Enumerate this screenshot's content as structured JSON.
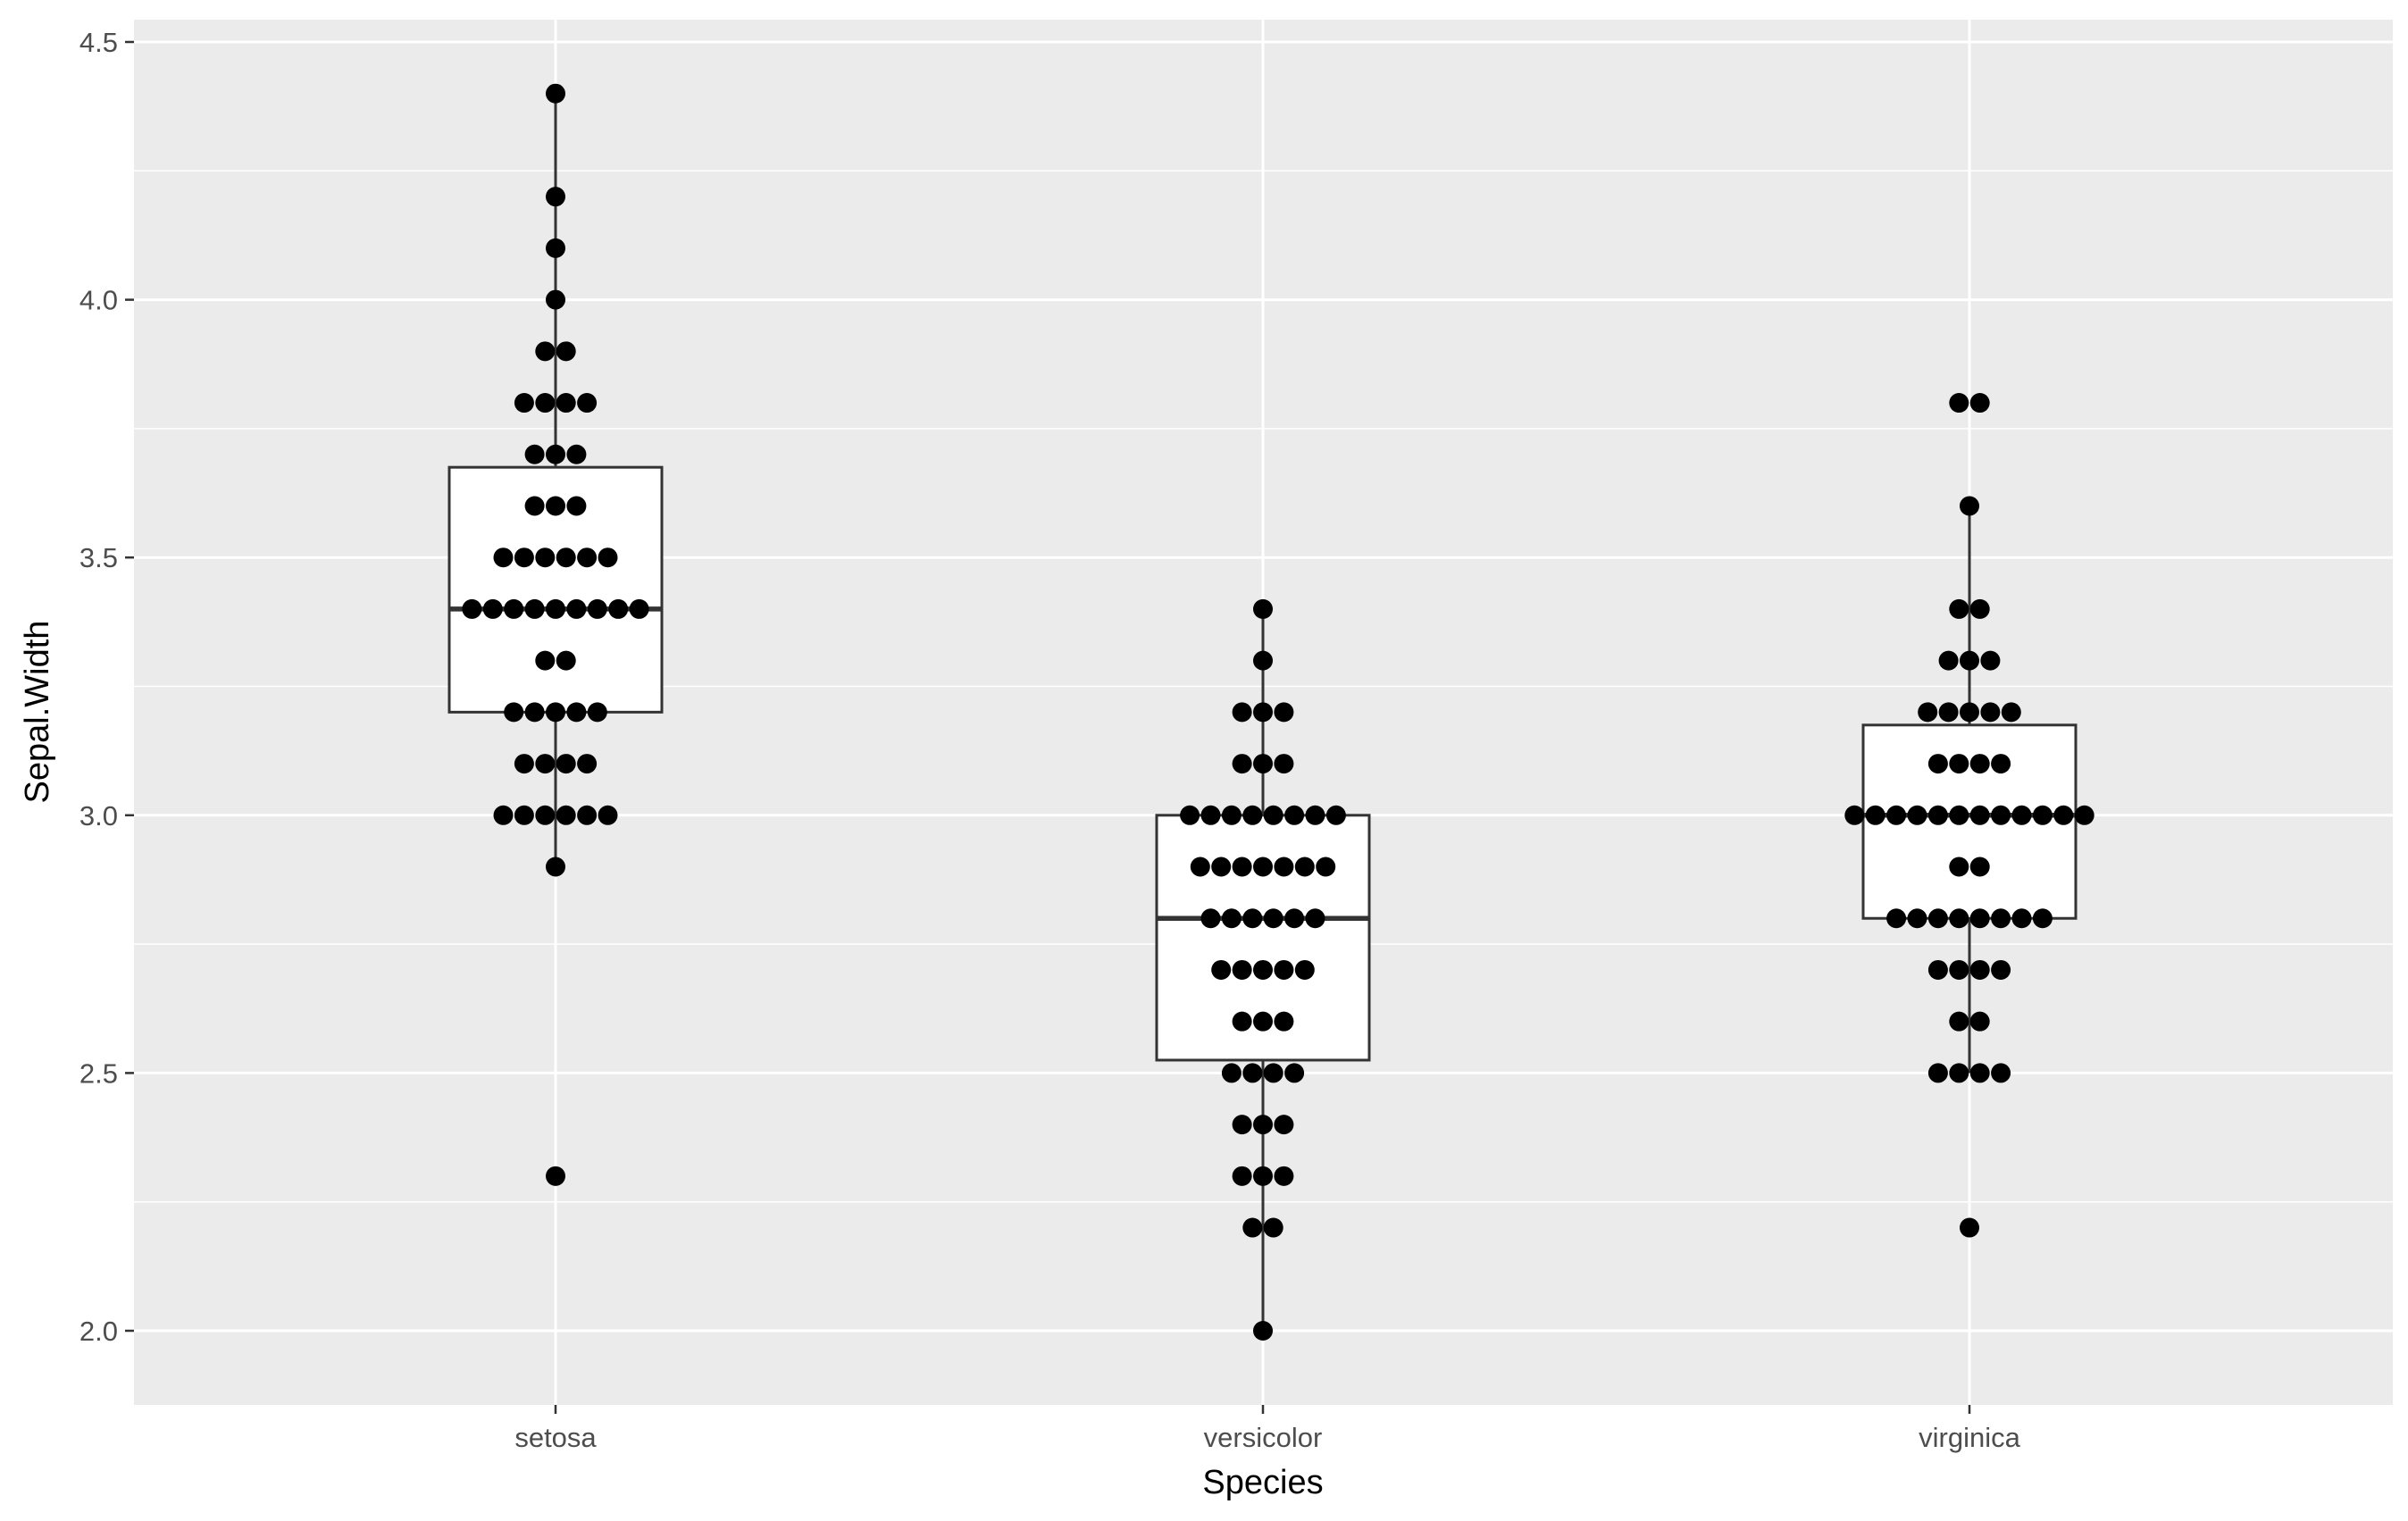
{
  "chart_data": {
    "type": "box-dotplot",
    "xlabel": "Species",
    "ylabel": "Sepal.Width",
    "categories": [
      "setosa",
      "versicolor",
      "virginica"
    ],
    "ylim": [
      1.87,
      4.6
    ],
    "yticks": [
      "2.0",
      "2.5",
      "3.0",
      "3.5",
      "4.0",
      "4.5"
    ],
    "grid": true,
    "colors": {
      "panel": "#ebebeb",
      "grid": "#ffffff",
      "box_fill": "#ffffff",
      "box_line": "#333333",
      "point": "#000000"
    },
    "boxes": [
      {
        "category": "setosa",
        "lower_whisker": 2.9,
        "q1": 3.2,
        "median": 3.4,
        "q3": 3.675,
        "upper_whisker": 4.4
      },
      {
        "category": "versicolor",
        "lower_whisker": 2.0,
        "q1": 2.525,
        "median": 2.8,
        "q3": 3.0,
        "upper_whisker": 3.4
      },
      {
        "category": "virginica",
        "lower_whisker": 2.5,
        "q1": 2.8,
        "median": 3.0,
        "q3": 3.175,
        "upper_whisker": 3.6
      }
    ],
    "dots": [
      {
        "category": "setosa",
        "counts": [
          [
            2.3,
            1
          ],
          [
            2.9,
            1
          ],
          [
            3.0,
            6
          ],
          [
            3.1,
            4
          ],
          [
            3.2,
            5
          ],
          [
            3.3,
            2
          ],
          [
            3.4,
            9
          ],
          [
            3.5,
            6
          ],
          [
            3.6,
            3
          ],
          [
            3.7,
            3
          ],
          [
            3.8,
            4
          ],
          [
            3.9,
            2
          ],
          [
            4.0,
            1
          ],
          [
            4.1,
            1
          ],
          [
            4.2,
            1
          ],
          [
            4.4,
            1
          ]
        ]
      },
      {
        "category": "versicolor",
        "counts": [
          [
            2.0,
            1
          ],
          [
            2.2,
            2
          ],
          [
            2.3,
            3
          ],
          [
            2.4,
            3
          ],
          [
            2.5,
            4
          ],
          [
            2.6,
            3
          ],
          [
            2.7,
            5
          ],
          [
            2.8,
            6
          ],
          [
            2.9,
            7
          ],
          [
            3.0,
            8
          ],
          [
            3.1,
            3
          ],
          [
            3.2,
            3
          ],
          [
            3.3,
            1
          ],
          [
            3.4,
            1
          ]
        ]
      },
      {
        "category": "virginica",
        "counts": [
          [
            2.2,
            1
          ],
          [
            2.5,
            4
          ],
          [
            2.6,
            2
          ],
          [
            2.7,
            4
          ],
          [
            2.8,
            8
          ],
          [
            2.9,
            2
          ],
          [
            3.0,
            12
          ],
          [
            3.1,
            4
          ],
          [
            3.2,
            5
          ],
          [
            3.3,
            3
          ],
          [
            3.4,
            2
          ],
          [
            3.6,
            1
          ],
          [
            3.8,
            2
          ]
        ]
      }
    ]
  }
}
